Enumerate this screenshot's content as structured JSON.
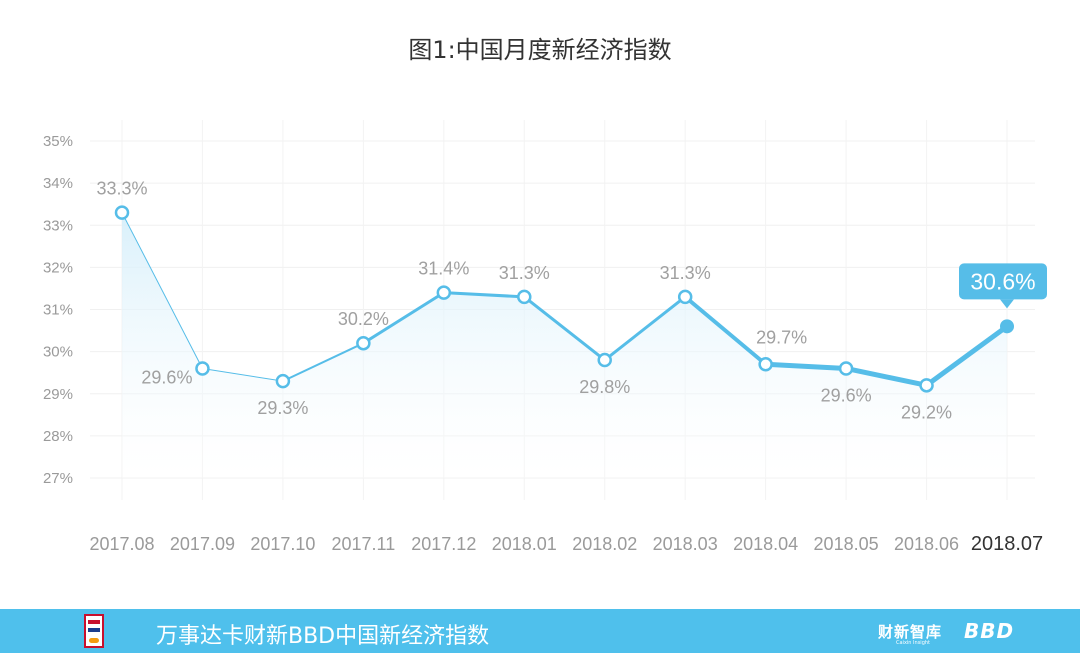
{
  "title": "图1:中国月度新经济指数",
  "chart_data": {
    "type": "line",
    "title": "图1:中国月度新经济指数",
    "categories": [
      "2017.08",
      "2017.09",
      "2017.10",
      "2017.11",
      "2017.12",
      "2018.01",
      "2018.02",
      "2018.03",
      "2018.04",
      "2018.05",
      "2018.06",
      "2018.07"
    ],
    "series": [
      {
        "values": [
          33.3,
          29.6,
          29.3,
          30.2,
          31.4,
          31.3,
          29.8,
          31.3,
          29.7,
          29.6,
          29.2,
          30.6
        ]
      }
    ],
    "data_labels": [
      "33.3%",
      "29.6%",
      "29.3%",
      "30.2%",
      "31.4%",
      "31.3%",
      "29.8%",
      "31.3%",
      "29.7%",
      "29.6%",
      "29.2%",
      "30.6%"
    ],
    "y_ticks": [
      "27%",
      "28%",
      "29%",
      "30%",
      "31%",
      "32%",
      "33%",
      "34%",
      "35%"
    ],
    "ylim": [
      27,
      35
    ],
    "grid": true,
    "line_color": "#56bde8",
    "highlight": {
      "index": 11,
      "label": "30.6%"
    }
  },
  "footer": {
    "text": "万事达卡财新BBD中国新经济指数",
    "brand_caixin": "财新智库",
    "brand_caixin_sub": "Caixin Insight",
    "brand_bbd": "BBD",
    "background": "#4fc0ec"
  }
}
